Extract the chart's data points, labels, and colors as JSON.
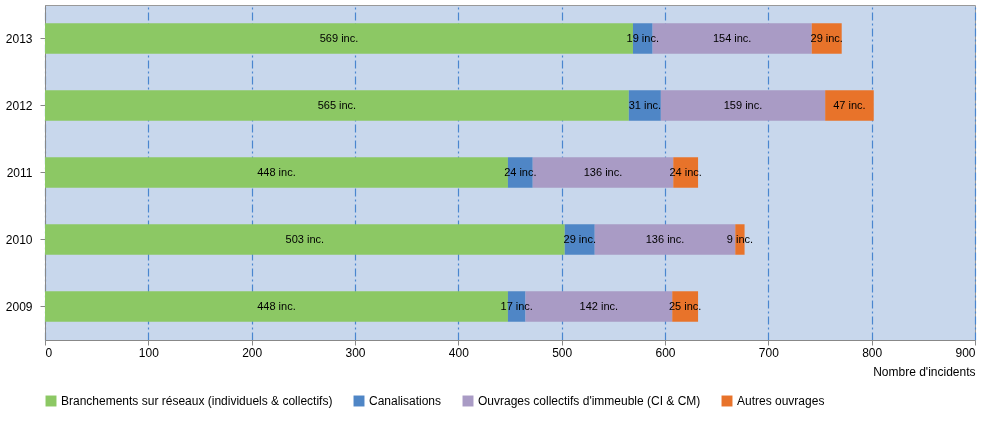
{
  "chart_data": {
    "type": "bar",
    "orientation": "horizontal",
    "stacked": true,
    "categories": [
      "2013",
      "2012",
      "2011",
      "2010",
      "2009"
    ],
    "xlabel": "Nombre d'incidents",
    "xlim": [
      0,
      900
    ],
    "xticks": [
      0,
      100,
      200,
      300,
      400,
      500,
      600,
      700,
      800,
      900
    ],
    "grid": "x",
    "legend": "bottom",
    "series": [
      {
        "name": "Branchements sur réseaux (individuels & collectifs)",
        "color": "#8cc864",
        "values": [
          569,
          565,
          448,
          503,
          448
        ],
        "value_labels": [
          "569 inc.",
          "565 inc.",
          "448 inc.",
          "503 inc.",
          "448 inc."
        ]
      },
      {
        "name": "Canalisations",
        "color": "#4f86c6",
        "values": [
          19,
          31,
          24,
          29,
          17
        ],
        "value_labels": [
          "19 inc.",
          "31 inc.",
          "24 inc.",
          "29 inc.",
          "17 inc."
        ]
      },
      {
        "name": "Ouvrages collectifs d'immeuble (CI & CM)",
        "color": "#a99bc5",
        "values": [
          154,
          159,
          136,
          136,
          142
        ],
        "value_labels": [
          "154 inc.",
          "159 inc.",
          "136 inc.",
          "136 inc.",
          "142 inc."
        ]
      },
      {
        "name": "Autres ouvrages",
        "color": "#e8732a",
        "values": [
          29,
          47,
          24,
          9,
          25
        ],
        "value_labels": [
          "29 inc.",
          "47 inc.",
          "24 inc.",
          "9 inc.",
          "25 inc."
        ]
      }
    ]
  }
}
